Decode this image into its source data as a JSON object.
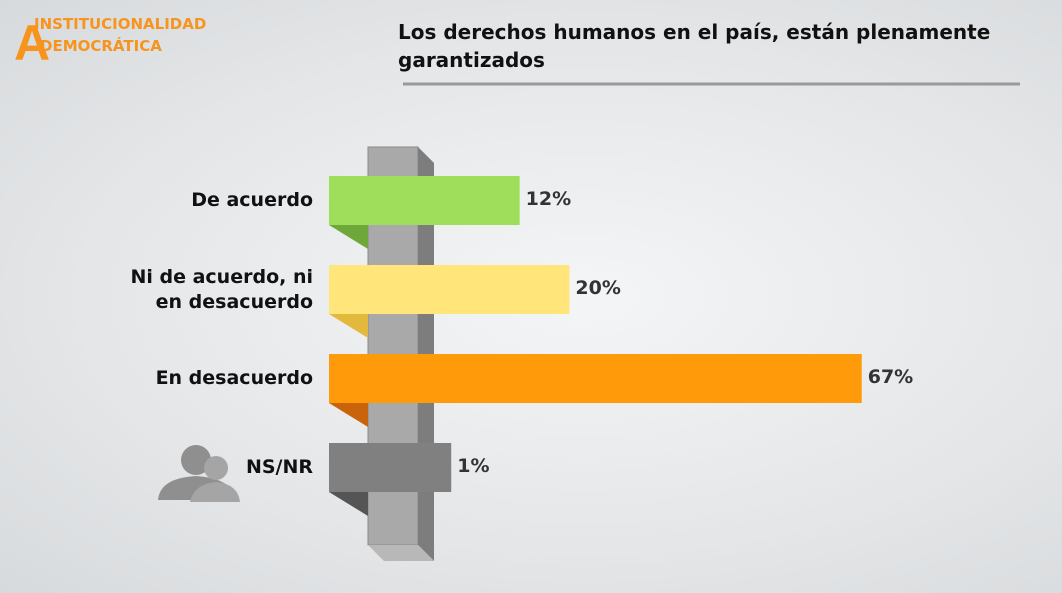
{
  "header": {
    "logo_line1": "INSTITUCIONALIDAD",
    "logo_line2": "DEMOCRÁTICA"
  },
  "chart_data": {
    "type": "bar",
    "orientation": "horizontal",
    "title": "Los derechos humanos en el país, están plenamente garantizados",
    "categories": [
      "De acuerdo",
      "Ni de acuerdo, ni en desacuerdo",
      "En desacuerdo",
      "NS/NR"
    ],
    "values": [
      12,
      20,
      67,
      1
    ],
    "value_labels": [
      "12%",
      "20%",
      "67%",
      "1%"
    ],
    "colors": [
      "#9ede5a",
      "#ffe57a",
      "#ff9a0a",
      "#808080"
    ],
    "shadow_colors": [
      "#6fa83a",
      "#e3b93d",
      "#c9640a",
      "#555555"
    ]
  }
}
